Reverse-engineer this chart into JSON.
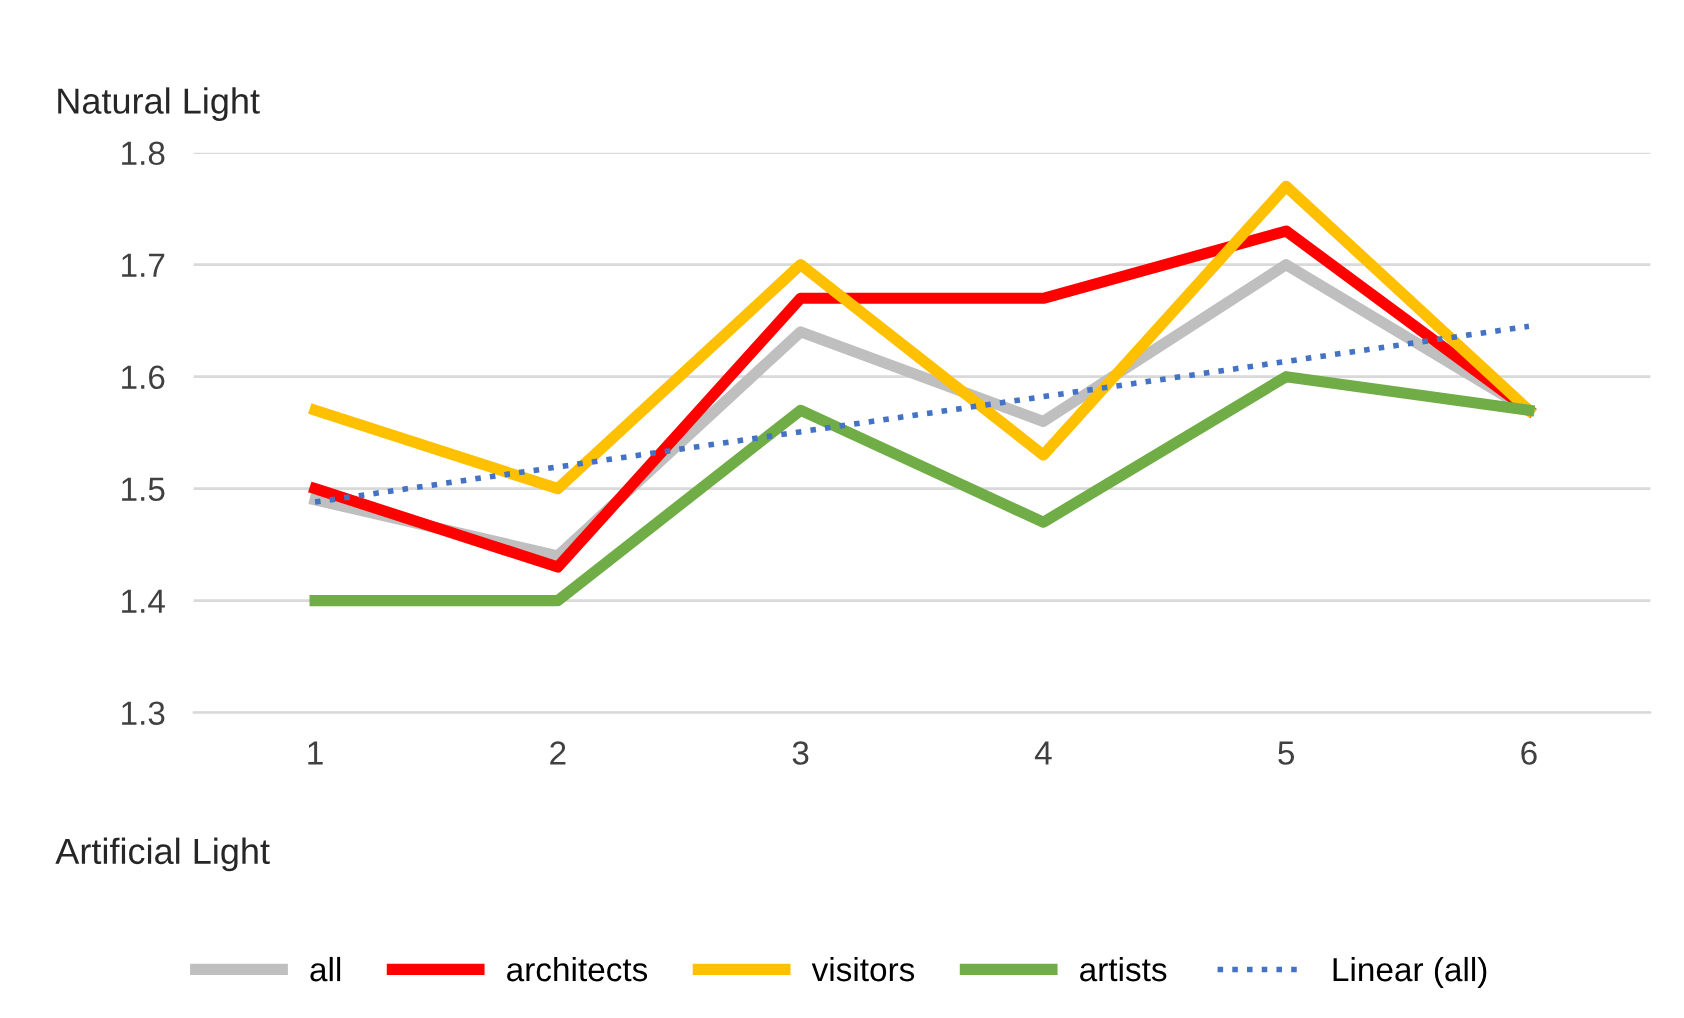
{
  "chart_data": {
    "type": "line",
    "title": "Natural Light",
    "xlabel": "Artificial Light",
    "x": [
      1,
      2,
      3,
      4,
      5,
      6
    ],
    "xlim": [
      0.5,
      6.5
    ],
    "xticks": [
      1,
      2,
      3,
      4,
      5,
      6
    ],
    "ylim": [
      1.3,
      1.8
    ],
    "yticks": [
      1.3,
      1.4,
      1.5,
      1.6,
      1.7,
      1.8
    ],
    "grid": "y",
    "legend": "bottom",
    "marker": "none",
    "series": [
      {
        "name": "all",
        "color": "#bfbfbf",
        "values": [
          1.49,
          1.44,
          1.64,
          1.56,
          1.7,
          1.57
        ]
      },
      {
        "name": "architects",
        "color": "#ff0000",
        "values": [
          1.5,
          1.43,
          1.67,
          1.67,
          1.73,
          1.57
        ]
      },
      {
        "name": "visitors",
        "color": "#ffc000",
        "values": [
          1.57,
          1.5,
          1.7,
          1.53,
          1.77,
          1.57
        ]
      },
      {
        "name": "artists",
        "color": "#70ad47",
        "values": [
          1.4,
          1.4,
          1.57,
          1.47,
          1.6,
          1.57
        ]
      },
      {
        "name": "Linear (all)",
        "color": "#4472c4",
        "x": [
          1,
          6
        ],
        "values": [
          1.488,
          1.645
        ],
        "line_style": "dotted"
      }
    ]
  }
}
